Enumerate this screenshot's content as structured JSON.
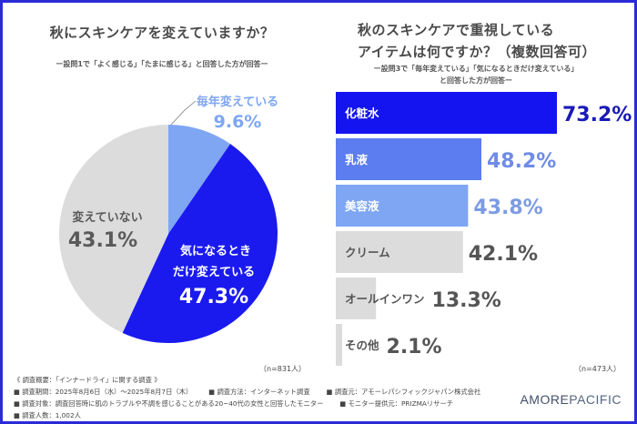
{
  "left_panel": {
    "title": "秋にスキンケアを変えていますか？",
    "subtitle": "ー設問1で「よく感じる」「たまに感じる」と回答した方が回答ー",
    "n_label": "（n=831人）"
  },
  "right_panel": {
    "title_line1": "秋のスキンケアで重視している",
    "title_line2": "アイテムは何ですか？（複数回答可）",
    "subtitle_line1": "ー設問3で「毎年変えている」「気になるときだけ変えている」",
    "subtitle_line2": "と回答した方が回答ー",
    "n_label": "（n=473人）"
  },
  "chart_data": [
    {
      "type": "pie",
      "title": "秋にスキンケアを変えていますか？",
      "start": "12 o'clock, clockwise",
      "slices": [
        {
          "label": "毎年変えている",
          "value": 9.6,
          "display": "9.6%",
          "color": "#7ea6f2",
          "label_color": "#7ea6f2"
        },
        {
          "label_lines": [
            "気になるとき",
            "だけ変えている"
          ],
          "label": "気になるときだけ変えている",
          "value": 47.3,
          "display": "47.3%",
          "color": "#1a1aef",
          "label_color": "#ffffff"
        },
        {
          "label": "変えていない",
          "value": 43.1,
          "display": "43.1%",
          "color": "#dcdcdc",
          "label_color": "#5a5a5a"
        }
      ]
    },
    {
      "type": "bar",
      "orientation": "horizontal",
      "title": "秋のスキンケアで重視しているアイテムは何ですか？（複数回答可）",
      "xlim": [
        0,
        100
      ],
      "categories": [
        "化粧水",
        "乳液",
        "美容液",
        "クリーム",
        "オールインワン",
        "その他"
      ],
      "values": [
        73.2,
        48.2,
        43.8,
        42.1,
        13.3,
        2.1
      ],
      "display": [
        "73.2%",
        "48.2%",
        "43.8%",
        "42.1%",
        "13.3%",
        "2.1%"
      ],
      "bar_colors": [
        "#1414f0",
        "#5b7df0",
        "#7ea6f2",
        "#dcdcdc",
        "#dcdcdc",
        "#dcdcdc"
      ],
      "label_colors": [
        "#ffffff",
        "#ffffff",
        "#ffffff",
        "#555555",
        "#555555",
        "#555555"
      ],
      "value_colors": [
        "#1a1ab8",
        "#6f8ce6",
        "#7c9be3",
        "#555555",
        "#555555",
        "#555555"
      ]
    }
  ],
  "footer": {
    "heading": "《 調査概要：「インナードライ」に関する調査 》",
    "period": "■ 調査期間：2025年8月6日（水）～2025年8月7日（木）",
    "method": "■ 調査方法：インターネット調査",
    "organizer": "■ 調査元：アモーレパシフィックジャパン株式会社",
    "target": "■ 調査対象：調査回答時に肌のトラブルや不調を感じることがある20~40代の女性と回答したモニター",
    "provider": "■ モニター提供元：PRIZMAリサーチ",
    "count": "■ 調査人数：1,002人"
  },
  "logo": {
    "part1": "AMORE",
    "part2": "PACIFIC"
  }
}
